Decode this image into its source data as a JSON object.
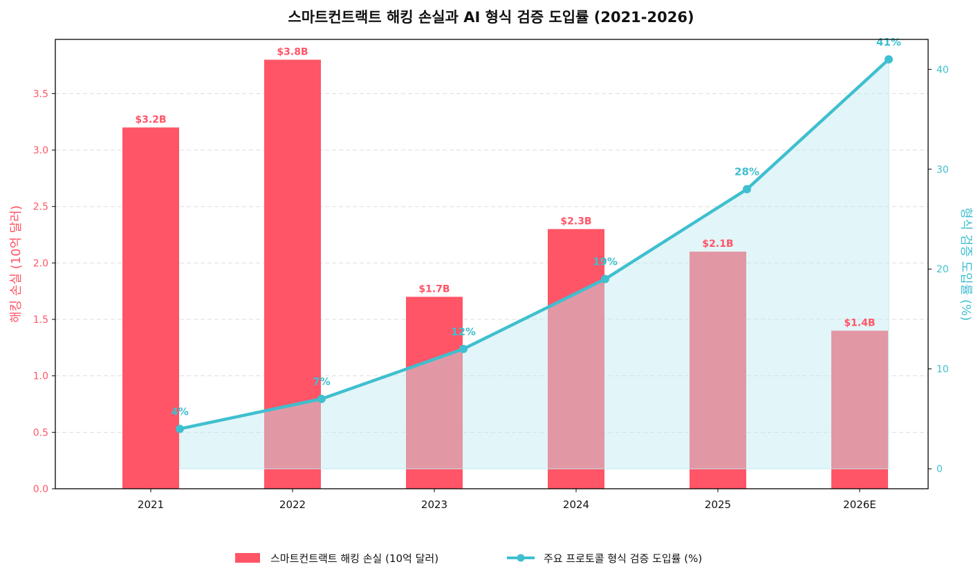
{
  "chart_data": {
    "type": "bar",
    "title": "스마트컨트랙트 해킹 손실과 AI 형식 검증 도입률 (2021-2026)",
    "categories": [
      "2021",
      "2022",
      "2023",
      "2024",
      "2025",
      "2026E"
    ],
    "ylabel_left": "해킹 손실 (10억 달러)",
    "ylabel_right": "형식 검증 도입률 (%)",
    "ylim_left": [
      0,
      3.98
    ],
    "ylim_right": [
      -2,
      43
    ],
    "yticks_left": [
      "0.0",
      "0.5",
      "1.0",
      "1.5",
      "2.0",
      "2.5",
      "3.0",
      "3.5"
    ],
    "yticks_right": [
      "0",
      "10",
      "20",
      "30",
      "40"
    ],
    "grid": true,
    "legend_placement": "bottom-center",
    "series": [
      {
        "name": "스마트컨트랙트 해킹 손실 (10억 달러)",
        "type": "bar",
        "axis": "left",
        "values": [
          3.2,
          3.8,
          1.7,
          2.3,
          2.1,
          1.4
        ],
        "labels": [
          "$3.2B",
          "$3.8B",
          "$1.7B",
          "$2.3B",
          "$2.1B",
          "$1.4B"
        ],
        "color": "#ff5566"
      },
      {
        "name": "주요 프로토콜 형식 검증 도입률 (%)",
        "type": "line",
        "axis": "right",
        "values": [
          4,
          7,
          12,
          19,
          28,
          41
        ],
        "labels": [
          "4%",
          "7%",
          "12%",
          "19%",
          "28%",
          "41%"
        ],
        "color": "#3fbfcf",
        "fill_color": "#bfe9f0"
      }
    ]
  }
}
